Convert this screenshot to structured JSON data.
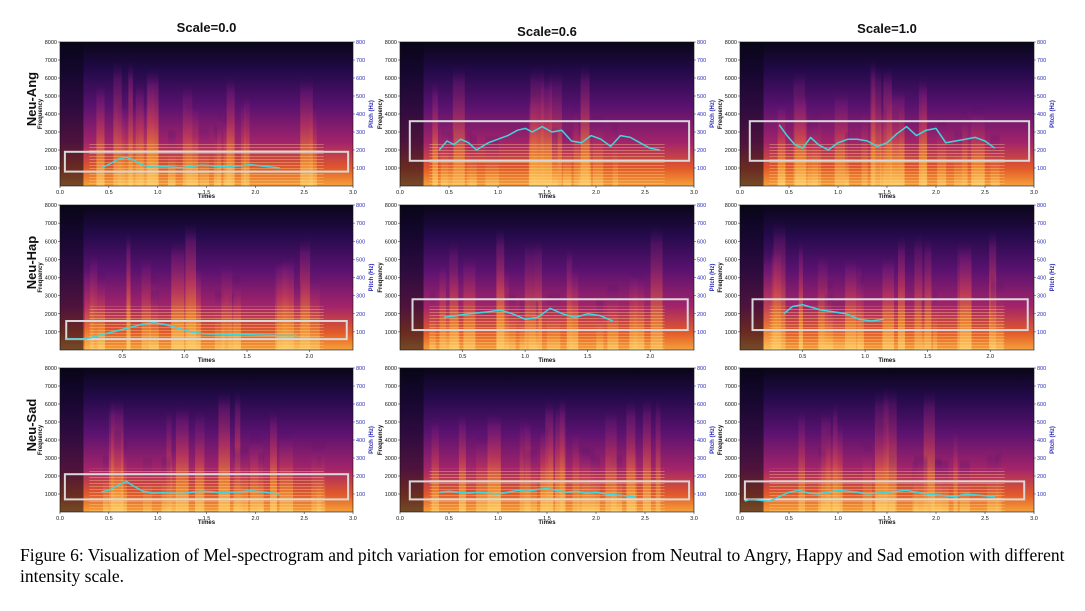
{
  "figure": {
    "columns": [
      "Scale=0.0",
      "Scale=0.6",
      "Scale=1.0"
    ],
    "rows": [
      "Neu-Ang",
      "Neu-Hap",
      "Neu-Sad"
    ],
    "caption": "Figure 6: Visualization of Mel-spectrogram and pitch variation for emotion conversion from Neutral to Angry, Happy and Sad emotion with different intensity scale.",
    "colors": {
      "pitch_line": "#3fd6e0",
      "highlight_box": "#d9d9d9",
      "pitch_axis": "#2a2ab8"
    }
  },
  "chart_data": [
    {
      "type": "heatmap",
      "row": "Neu-Ang",
      "column": "Scale=0.0",
      "title": "Scale=0.0",
      "xlabel": "Times",
      "ylabel": "Frequency",
      "ylabel_right": "Pitch (Hz)",
      "xlim": [
        0,
        3.0
      ],
      "ylim": [
        0,
        8000
      ],
      "ylim_right": [
        0,
        800
      ],
      "xticks": [
        "0.0",
        "0.5",
        "1.0",
        "1.5",
        "2.0",
        "2.5",
        "3.0"
      ],
      "yticks": [
        "1000",
        "2000",
        "3000",
        "4000",
        "5000",
        "6000",
        "7000",
        "8000"
      ],
      "yticks_right": [
        "100",
        "200",
        "300",
        "400",
        "500",
        "600",
        "700",
        "800"
      ],
      "highlight_box": {
        "x": [
          0.05,
          2.95
        ],
        "y": [
          800,
          1900
        ]
      },
      "pitch": {
        "x": [
          0.42,
          0.5,
          0.6,
          0.68,
          0.75,
          0.85,
          0.95,
          1.05,
          1.15,
          1.25,
          1.35,
          1.45,
          1.55,
          1.65,
          1.75,
          1.85,
          1.95,
          2.05,
          2.15,
          2.25
        ],
        "y": [
          100,
          120,
          150,
          160,
          145,
          115,
          105,
          108,
          105,
          102,
          110,
          115,
          112,
          106,
          110,
          112,
          118,
          112,
          106,
          100
        ]
      }
    },
    {
      "type": "heatmap",
      "row": "Neu-Ang",
      "column": "Scale=0.6",
      "title": "Scale=0.6",
      "xlabel": "Times",
      "ylabel": "Frequency",
      "ylabel_right": "Pitch (Hz)",
      "xlim": [
        0,
        3.0
      ],
      "ylim": [
        0,
        8000
      ],
      "ylim_right": [
        0,
        800
      ],
      "xticks": [
        "0.0",
        "0.5",
        "1.0",
        "1.5",
        "2.0",
        "2.5",
        "3.0"
      ],
      "yticks": [
        "1000",
        "2000",
        "3000",
        "4000",
        "5000",
        "6000",
        "7000",
        "8000"
      ],
      "yticks_right": [
        "100",
        "200",
        "300",
        "400",
        "500",
        "600",
        "700",
        "800"
      ],
      "highlight_box": {
        "x": [
          0.1,
          2.95
        ],
        "y": [
          1400,
          3600
        ]
      },
      "pitch": {
        "x": [
          0.4,
          0.48,
          0.55,
          0.62,
          0.7,
          0.78,
          0.9,
          1.0,
          1.1,
          1.2,
          1.28,
          1.35,
          1.45,
          1.55,
          1.65,
          1.75,
          1.85,
          1.95,
          2.05,
          2.15,
          2.25,
          2.35,
          2.45,
          2.55,
          2.65
        ],
        "y": [
          200,
          250,
          230,
          260,
          240,
          200,
          240,
          260,
          280,
          310,
          320,
          300,
          330,
          300,
          310,
          250,
          240,
          280,
          260,
          220,
          280,
          270,
          240,
          210,
          200
        ]
      }
    },
    {
      "type": "heatmap",
      "row": "Neu-Ang",
      "column": "Scale=1.0",
      "title": "Scale=1.0",
      "xlabel": "Times",
      "ylabel": "Frequency",
      "ylabel_right": "Pitch (Hz)",
      "xlim": [
        0,
        3.0
      ],
      "ylim": [
        0,
        8000
      ],
      "ylim_right": [
        0,
        800
      ],
      "xticks": [
        "0.0",
        "0.5",
        "1.0",
        "1.5",
        "2.0",
        "2.5",
        "3.0"
      ],
      "yticks": [
        "1000",
        "2000",
        "3000",
        "4000",
        "5000",
        "6000",
        "7000",
        "8000"
      ],
      "yticks_right": [
        "100",
        "200",
        "300",
        "400",
        "500",
        "600",
        "700",
        "800"
      ],
      "highlight_box": {
        "x": [
          0.1,
          2.95
        ],
        "y": [
          1400,
          3600
        ]
      },
      "pitch": {
        "x": [
          0.4,
          0.48,
          0.56,
          0.64,
          0.72,
          0.8,
          0.9,
          1.0,
          1.1,
          1.2,
          1.3,
          1.4,
          1.5,
          1.6,
          1.7,
          1.8,
          1.9,
          2.0,
          2.1,
          2.2,
          2.3,
          2.4,
          2.5,
          2.6
        ],
        "y": [
          340,
          280,
          230,
          210,
          270,
          230,
          200,
          240,
          260,
          260,
          250,
          220,
          240,
          290,
          330,
          280,
          310,
          320,
          240,
          250,
          260,
          270,
          250,
          210
        ]
      }
    },
    {
      "type": "heatmap",
      "row": "Neu-Hap",
      "column": "Scale=0.0",
      "xlabel": "Times",
      "ylabel": "Frequency",
      "ylabel_right": "Pitch (Hz)",
      "xlim": [
        0,
        2.35
      ],
      "ylim": [
        0,
        8000
      ],
      "ylim_right": [
        0,
        800
      ],
      "xticks": [
        "0.5",
        "1.0",
        "1.5",
        "2.0"
      ],
      "yticks": [
        "1000",
        "2000",
        "3000",
        "4000",
        "5000",
        "6000",
        "7000",
        "8000"
      ],
      "yticks_right": [
        "100",
        "200",
        "300",
        "400",
        "500",
        "600",
        "700",
        "800"
      ],
      "highlight_box": {
        "x": [
          0.05,
          2.3
        ],
        "y": [
          600,
          1600
        ]
      },
      "pitch": {
        "x": [
          0.05,
          0.2,
          0.65,
          0.75,
          0.85,
          0.95,
          1.05,
          1.15,
          1.8,
          1.9
        ],
        "y": [
          60,
          60,
          140,
          150,
          140,
          120,
          100,
          90,
          80,
          80
        ]
      }
    },
    {
      "type": "heatmap",
      "row": "Neu-Hap",
      "column": "Scale=0.6",
      "xlabel": "Times",
      "ylabel": "Frequency",
      "ylabel_right": "Pitch (Hz)",
      "xlim": [
        0,
        2.35
      ],
      "ylim": [
        0,
        8000
      ],
      "ylim_right": [
        0,
        800
      ],
      "xticks": [
        "0.5",
        "1.0",
        "1.5",
        "2.0"
      ],
      "yticks": [
        "1000",
        "2000",
        "3000",
        "4000",
        "5000",
        "6000",
        "7000",
        "8000"
      ],
      "yticks_right": [
        "100",
        "200",
        "300",
        "400",
        "500",
        "600",
        "700",
        "800"
      ],
      "highlight_box": {
        "x": [
          0.1,
          2.3
        ],
        "y": [
          1100,
          2800
        ]
      },
      "pitch": {
        "x": [
          0.35,
          0.45,
          0.55,
          0.7,
          0.8,
          0.9,
          1.0,
          1.1,
          1.2,
          1.3,
          1.4,
          1.5,
          1.6,
          1.7
        ],
        "y": [
          180,
          190,
          200,
          210,
          220,
          200,
          170,
          180,
          230,
          200,
          180,
          200,
          190,
          160
        ]
      }
    },
    {
      "type": "heatmap",
      "row": "Neu-Hap",
      "column": "Scale=1.0",
      "xlabel": "Times",
      "ylabel": "Frequency",
      "ylabel_right": "Pitch (Hz)",
      "xlim": [
        0,
        2.35
      ],
      "ylim": [
        0,
        8000
      ],
      "ylim_right": [
        0,
        800
      ],
      "xticks": [
        "0.5",
        "1.0",
        "1.5",
        "2.0"
      ],
      "yticks": [
        "1000",
        "2000",
        "3000",
        "4000",
        "5000",
        "6000",
        "7000",
        "8000"
      ],
      "yticks_right": [
        "100",
        "200",
        "300",
        "400",
        "500",
        "600",
        "700",
        "800"
      ],
      "highlight_box": {
        "x": [
          0.1,
          2.3
        ],
        "y": [
          1100,
          2800
        ]
      },
      "pitch": {
        "x": [
          0.35,
          0.42,
          0.5,
          0.65,
          0.75,
          0.85,
          0.95,
          1.05,
          1.15
        ],
        "y": [
          200,
          240,
          250,
          220,
          210,
          200,
          170,
          160,
          170
        ]
      }
    },
    {
      "type": "heatmap",
      "row": "Neu-Sad",
      "column": "Scale=0.0",
      "xlabel": "Times",
      "ylabel": "Frequency",
      "ylabel_right": "Pitch (Hz)",
      "xlim": [
        0,
        3.0
      ],
      "ylim": [
        0,
        8000
      ],
      "ylim_right": [
        0,
        800
      ],
      "xticks": [
        "0.0",
        "0.5",
        "1.0",
        "1.5",
        "2.0",
        "2.5",
        "3.0"
      ],
      "yticks": [
        "1000",
        "2000",
        "3000",
        "4000",
        "5000",
        "6000",
        "7000",
        "8000"
      ],
      "yticks_right": [
        "100",
        "200",
        "300",
        "400",
        "500",
        "600",
        "700",
        "800"
      ],
      "highlight_box": {
        "x": [
          0.05,
          2.95
        ],
        "y": [
          700,
          2100
        ]
      },
      "pitch": {
        "x": [
          0.42,
          0.5,
          0.6,
          0.68,
          0.75,
          0.85,
          0.95,
          1.05,
          1.15,
          1.25,
          1.35,
          1.45,
          1.55,
          1.65,
          1.75,
          1.85,
          1.95,
          2.05,
          2.15,
          2.25
        ],
        "y": [
          110,
          120,
          150,
          170,
          145,
          115,
          105,
          108,
          105,
          102,
          110,
          115,
          112,
          106,
          110,
          112,
          118,
          112,
          106,
          100
        ]
      }
    },
    {
      "type": "heatmap",
      "row": "Neu-Sad",
      "column": "Scale=0.6",
      "xlabel": "Times",
      "ylabel": "Frequency",
      "ylabel_right": "Pitch (Hz)",
      "xlim": [
        0,
        3.0
      ],
      "ylim": [
        0,
        8000
      ],
      "ylim_right": [
        0,
        800
      ],
      "xticks": [
        "0.0",
        "0.5",
        "1.0",
        "1.5",
        "2.0",
        "2.5",
        "3.0"
      ],
      "yticks": [
        "1000",
        "2000",
        "3000",
        "4000",
        "5000",
        "6000",
        "7000",
        "8000"
      ],
      "yticks_right": [
        "100",
        "200",
        "300",
        "400",
        "500",
        "600",
        "700",
        "800"
      ],
      "highlight_box": {
        "x": [
          0.1,
          2.95
        ],
        "y": [
          700,
          1700
        ]
      },
      "pitch": {
        "x": [
          0.4,
          0.5,
          0.6,
          0.7,
          0.8,
          0.9,
          1.0,
          1.1,
          1.2,
          1.3,
          1.4,
          1.5,
          1.6,
          1.7,
          1.8,
          1.9,
          2.0,
          2.1,
          2.2,
          2.3,
          2.4
        ],
        "y": [
          110,
          115,
          110,
          105,
          110,
          105,
          100,
          110,
          120,
          115,
          125,
          130,
          120,
          110,
          115,
          105,
          110,
          100,
          95,
          90,
          85
        ]
      }
    },
    {
      "type": "heatmap",
      "row": "Neu-Sad",
      "column": "Scale=1.0",
      "xlabel": "Times",
      "ylabel": "Frequency",
      "ylabel_right": "Pitch (Hz)",
      "xlim": [
        0,
        3.0
      ],
      "ylim": [
        0,
        8000
      ],
      "ylim_right": [
        0,
        800
      ],
      "xticks": [
        "0.0",
        "0.5",
        "1.0",
        "1.5",
        "2.0",
        "2.5",
        "3.0"
      ],
      "yticks": [
        "1000",
        "2000",
        "3000",
        "4000",
        "5000",
        "6000",
        "7000",
        "8000"
      ],
      "yticks_right": [
        "100",
        "200",
        "300",
        "400",
        "500",
        "600",
        "700",
        "800"
      ],
      "highlight_box": {
        "x": [
          0.05,
          2.9
        ],
        "y": [
          700,
          1700
        ]
      },
      "pitch": {
        "x": [
          0.05,
          0.1,
          0.2,
          0.3,
          0.5,
          0.6,
          0.7,
          0.8,
          0.9,
          1.0,
          1.1,
          1.2,
          1.3,
          1.4,
          1.5,
          1.6,
          1.7,
          1.8,
          1.9,
          2.0,
          2.1,
          2.2,
          2.3,
          2.4,
          2.5,
          2.6
        ],
        "y": [
          60,
          70,
          65,
          60,
          110,
          120,
          105,
          100,
          110,
          120,
          115,
          110,
          100,
          105,
          110,
          115,
          120,
          110,
          100,
          95,
          90,
          85,
          100,
          95,
          90,
          85
        ]
      }
    }
  ]
}
